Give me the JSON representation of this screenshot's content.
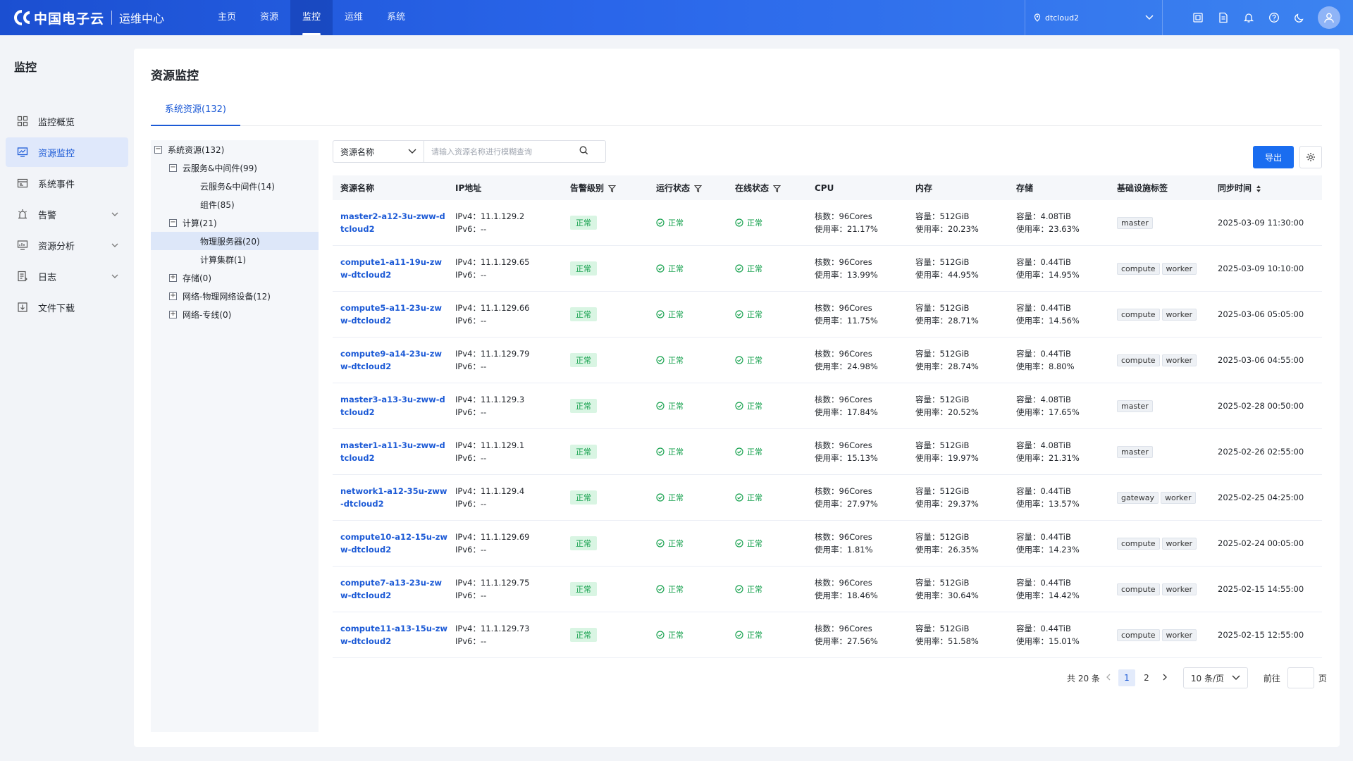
{
  "header": {
    "brand": "中国电子云",
    "subtitle": "运维中心",
    "nav": [
      {
        "label": "主页",
        "active": false
      },
      {
        "label": "资源",
        "active": false
      },
      {
        "label": "监控",
        "active": true
      },
      {
        "label": "运维",
        "active": false
      },
      {
        "label": "系统",
        "active": false
      }
    ],
    "tenant": "dtcloud2",
    "icons": [
      "screen-icon",
      "document-icon",
      "bell-icon",
      "help-icon",
      "moon-icon"
    ]
  },
  "sidebar": {
    "title": "监控",
    "items": [
      {
        "label": "监控概览",
        "icon": "grid-icon",
        "active": false,
        "expandable": false
      },
      {
        "label": "资源监控",
        "icon": "monitor-chart-icon",
        "active": true,
        "expandable": false
      },
      {
        "label": "系统事件",
        "icon": "event-icon",
        "active": false,
        "expandable": false
      },
      {
        "label": "告警",
        "icon": "alarm-icon",
        "active": false,
        "expandable": true
      },
      {
        "label": "资源分析",
        "icon": "analysis-icon",
        "active": false,
        "expandable": true
      },
      {
        "label": "日志",
        "icon": "log-icon",
        "active": false,
        "expandable": true
      },
      {
        "label": "文件下载",
        "icon": "download-icon",
        "active": false,
        "expandable": false
      }
    ]
  },
  "main": {
    "title": "资源监控",
    "tab": "系统资源(132)",
    "tree": [
      {
        "label": "系统资源(132)",
        "toggle": "−",
        "level": 0,
        "selected": false
      },
      {
        "label": "云服务&中间件(99)",
        "toggle": "−",
        "level": 1,
        "selected": false
      },
      {
        "label": "云服务&中间件(14)",
        "toggle": "",
        "level": 2,
        "selected": false
      },
      {
        "label": "组件(85)",
        "toggle": "",
        "level": 2,
        "selected": false
      },
      {
        "label": "计算(21)",
        "toggle": "−",
        "level": 1,
        "selected": false
      },
      {
        "label": "物理服务器(20)",
        "toggle": "",
        "level": 2,
        "selected": true
      },
      {
        "label": "计算集群(1)",
        "toggle": "",
        "level": 2,
        "selected": false
      },
      {
        "label": "存储(0)",
        "toggle": "+",
        "level": 1,
        "selected": false
      },
      {
        "label": "网络-物理网络设备(12)",
        "toggle": "+",
        "level": 1,
        "selected": false
      },
      {
        "label": "网络-专线(0)",
        "toggle": "+",
        "level": 1,
        "selected": false
      }
    ],
    "filter": {
      "field": "资源名称",
      "placeholder": "请输入资源名称进行模糊查询"
    },
    "export_label": "导出",
    "columns": [
      "资源名称",
      "IP地址",
      "告警级别",
      "运行状态",
      "在线状态",
      "CPU",
      "内存",
      "存储",
      "基础设施标签",
      "同步时间"
    ],
    "labels": {
      "ipv4": "IPv4：",
      "ipv6": "IPv6：",
      "cores": "核数：",
      "usage": "使用率：",
      "capacity": "容量："
    },
    "rows": [
      {
        "name": "master2-a12-3u-zww-dtcloud2",
        "ipv4": "11.1.129.2",
        "ipv6": "--",
        "alarm": "正常",
        "run": "正常",
        "online": "正常",
        "cpu_cores": "96Cores",
        "cpu_usage": "21.17%",
        "mem_cap": "512GiB",
        "mem_usage": "20.23%",
        "disk_cap": "4.08TiB",
        "disk_usage": "23.63%",
        "tags": [
          "master"
        ],
        "sync": "2025-03-09 11:30:00"
      },
      {
        "name": "compute1-a11-19u-zww-dtcloud2",
        "ipv4": "11.1.129.65",
        "ipv6": "--",
        "alarm": "正常",
        "run": "正常",
        "online": "正常",
        "cpu_cores": "96Cores",
        "cpu_usage": "13.99%",
        "mem_cap": "512GiB",
        "mem_usage": "44.95%",
        "disk_cap": "0.44TiB",
        "disk_usage": "14.95%",
        "tags": [
          "compute",
          "worker"
        ],
        "sync": "2025-03-09 10:10:00"
      },
      {
        "name": "compute5-a11-23u-zww-dtcloud2",
        "ipv4": "11.1.129.66",
        "ipv6": "--",
        "alarm": "正常",
        "run": "正常",
        "online": "正常",
        "cpu_cores": "96Cores",
        "cpu_usage": "11.75%",
        "mem_cap": "512GiB",
        "mem_usage": "28.71%",
        "disk_cap": "0.44TiB",
        "disk_usage": "14.56%",
        "tags": [
          "compute",
          "worker"
        ],
        "sync": "2025-03-06 05:05:00"
      },
      {
        "name": "compute9-a14-23u-zww-dtcloud2",
        "ipv4": "11.1.129.79",
        "ipv6": "--",
        "alarm": "正常",
        "run": "正常",
        "online": "正常",
        "cpu_cores": "96Cores",
        "cpu_usage": "24.98%",
        "mem_cap": "512GiB",
        "mem_usage": "28.74%",
        "disk_cap": "0.44TiB",
        "disk_usage": "8.80%",
        "tags": [
          "compute",
          "worker"
        ],
        "sync": "2025-03-06 04:55:00"
      },
      {
        "name": "master3-a13-3u-zww-dtcloud2",
        "ipv4": "11.1.129.3",
        "ipv6": "--",
        "alarm": "正常",
        "run": "正常",
        "online": "正常",
        "cpu_cores": "96Cores",
        "cpu_usage": "17.84%",
        "mem_cap": "512GiB",
        "mem_usage": "20.52%",
        "disk_cap": "4.08TiB",
        "disk_usage": "17.65%",
        "tags": [
          "master"
        ],
        "sync": "2025-02-28 00:50:00"
      },
      {
        "name": "master1-a11-3u-zww-dtcloud2",
        "ipv4": "11.1.129.1",
        "ipv6": "--",
        "alarm": "正常",
        "run": "正常",
        "online": "正常",
        "cpu_cores": "96Cores",
        "cpu_usage": "15.13%",
        "mem_cap": "512GiB",
        "mem_usage": "19.97%",
        "disk_cap": "4.08TiB",
        "disk_usage": "21.31%",
        "tags": [
          "master"
        ],
        "sync": "2025-02-26 02:55:00"
      },
      {
        "name": "network1-a12-35u-zww-dtcloud2",
        "ipv4": "11.1.129.4",
        "ipv6": "--",
        "alarm": "正常",
        "run": "正常",
        "online": "正常",
        "cpu_cores": "96Cores",
        "cpu_usage": "27.97%",
        "mem_cap": "512GiB",
        "mem_usage": "29.37%",
        "disk_cap": "0.44TiB",
        "disk_usage": "13.57%",
        "tags": [
          "gateway",
          "worker"
        ],
        "sync": "2025-02-25 04:25:00"
      },
      {
        "name": "compute10-a12-15u-zww-dtcloud2",
        "ipv4": "11.1.129.69",
        "ipv6": "--",
        "alarm": "正常",
        "run": "正常",
        "online": "正常",
        "cpu_cores": "96Cores",
        "cpu_usage": "1.81%",
        "mem_cap": "512GiB",
        "mem_usage": "26.35%",
        "disk_cap": "0.44TiB",
        "disk_usage": "14.23%",
        "tags": [
          "compute",
          "worker"
        ],
        "sync": "2025-02-24 00:05:00"
      },
      {
        "name": "compute7-a13-23u-zww-dtcloud2",
        "ipv4": "11.1.129.75",
        "ipv6": "--",
        "alarm": "正常",
        "run": "正常",
        "online": "正常",
        "cpu_cores": "96Cores",
        "cpu_usage": "18.46%",
        "mem_cap": "512GiB",
        "mem_usage": "30.64%",
        "disk_cap": "0.44TiB",
        "disk_usage": "14.42%",
        "tags": [
          "compute",
          "worker"
        ],
        "sync": "2025-02-15 14:55:00"
      },
      {
        "name": "compute11-a13-15u-zww-dtcloud2",
        "ipv4": "11.1.129.73",
        "ipv6": "--",
        "alarm": "正常",
        "run": "正常",
        "online": "正常",
        "cpu_cores": "96Cores",
        "cpu_usage": "27.56%",
        "mem_cap": "512GiB",
        "mem_usage": "51.58%",
        "disk_cap": "0.44TiB",
        "disk_usage": "15.01%",
        "tags": [
          "compute",
          "worker"
        ],
        "sync": "2025-02-15 12:55:00"
      }
    ],
    "pagination": {
      "total": "共 20 条",
      "pages": [
        "1",
        "2"
      ],
      "current": "1",
      "page_size": "10 条/页",
      "goto_label": "前往",
      "page_suffix": "页"
    }
  },
  "colors": {
    "primary": "#1a6df0",
    "success": "#14a04c",
    "header": "#2a66ea"
  }
}
